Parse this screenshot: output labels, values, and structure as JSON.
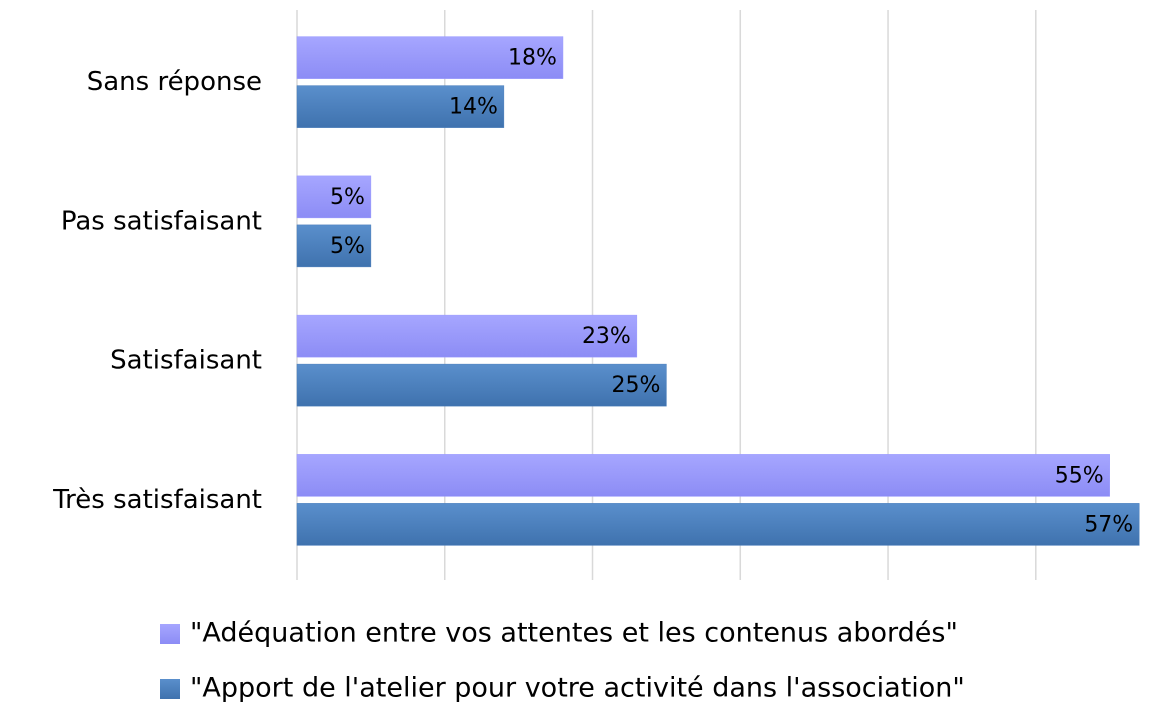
{
  "chart_data": {
    "type": "barh",
    "categories": [
      "Sans réponse",
      "Pas satisfaisant",
      "Satisfaisant",
      "Très satisfaisant"
    ],
    "series": [
      {
        "name": "\"Adéquation entre vos attentes et les contenus abordés\"",
        "color": "#9999ff",
        "values": [
          18,
          5,
          23,
          55
        ],
        "value_labels": [
          "18%",
          "5%",
          "23%",
          "55%"
        ]
      },
      {
        "name": "\"Apport de l'atelier pour votre activité dans l'association\"",
        "color": "#4a7ebb",
        "values": [
          14,
          5,
          25,
          57
        ],
        "value_labels": [
          "14%",
          "5%",
          "25%",
          "57%"
        ]
      }
    ],
    "xlim": [
      0,
      58
    ],
    "xticks": [
      0,
      10,
      20,
      30,
      40,
      50
    ],
    "grid": true
  }
}
